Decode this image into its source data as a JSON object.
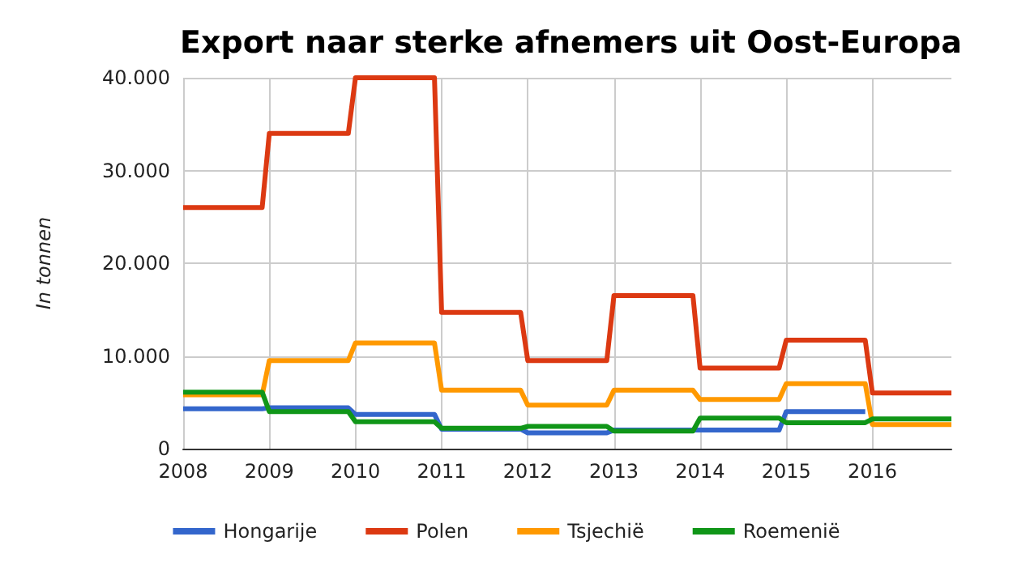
{
  "chart_data": {
    "type": "line",
    "title": "Export naar sterke afnemers uit Oost-Europa",
    "ylabel": "In tonnen",
    "x": [
      2008,
      2008.917,
      2009,
      2009.917,
      2010,
      2010.917,
      2011,
      2011.917,
      2012,
      2012.917,
      2013,
      2013.917,
      2014,
      2014.917,
      2015,
      2015.917,
      2016,
      2016.917
    ],
    "series": [
      {
        "name": "Hongarije",
        "color": "#3366cc",
        "values": [
          4300,
          4300,
          4400,
          4400,
          3700,
          3700,
          2100,
          2100,
          1700,
          1700,
          2000,
          2000,
          2000,
          2000,
          4000,
          4000,
          null,
          null
        ]
      },
      {
        "name": "Polen",
        "color": "#dc3912",
        "values": [
          26000,
          26000,
          34000,
          34000,
          40000,
          40000,
          14700,
          14700,
          9500,
          9500,
          16500,
          16500,
          8700,
          8700,
          11700,
          11700,
          6000,
          6000
        ]
      },
      {
        "name": "Tsjechië",
        "color": "#ff9900",
        "values": [
          5800,
          5800,
          9500,
          9500,
          11400,
          11400,
          6300,
          6300,
          4700,
          4700,
          6300,
          6300,
          5300,
          5300,
          7000,
          7000,
          2600,
          2600
        ]
      },
      {
        "name": "Roemenië",
        "color": "#109618",
        "values": [
          6100,
          6100,
          4000,
          4000,
          2900,
          2900,
          2200,
          2200,
          2400,
          2400,
          1900,
          1900,
          3300,
          3300,
          2800,
          2800,
          3200,
          3200
        ]
      }
    ],
    "xlim": [
      2008,
      2016.917
    ],
    "xticks": [
      2008,
      2009,
      2010,
      2011,
      2012,
      2013,
      2014,
      2015,
      2016
    ],
    "ylim": [
      0,
      40000
    ],
    "yticks": [
      0,
      {
        "value": 10000,
        "label": "10.000"
      },
      {
        "value": 20000,
        "label": "20.000"
      },
      {
        "value": 30000,
        "label": "30.000"
      },
      {
        "value": 40000,
        "label": "40.000"
      }
    ],
    "grid": true,
    "legend": "bottom",
    "marker": "none",
    "line_style": "solid"
  }
}
